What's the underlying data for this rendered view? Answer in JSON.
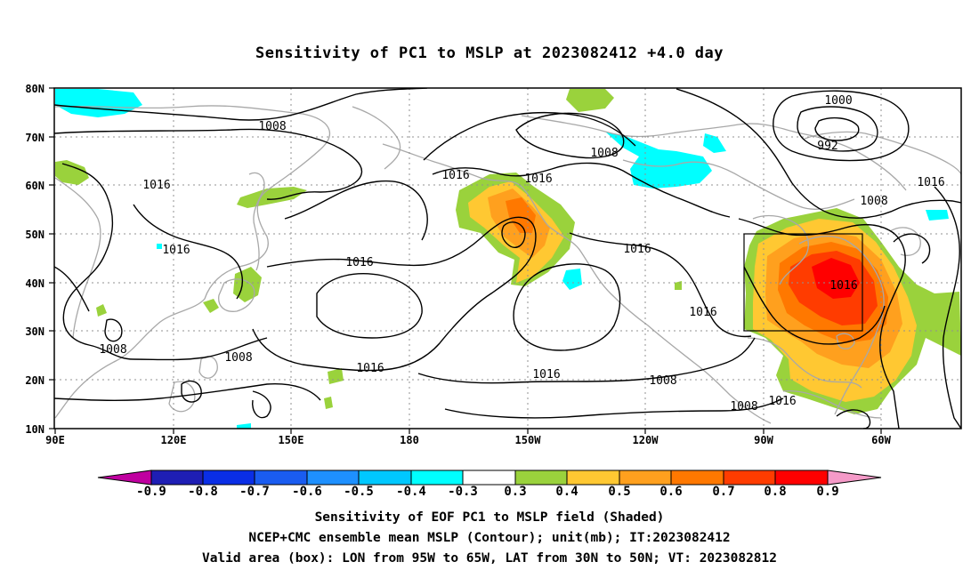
{
  "title": "Sensitivity of PC1 to MSLP at 2023082412 +4.0 day",
  "map": {
    "lon_range": [
      "90E",
      "40W"
    ],
    "lat_range": [
      "10N",
      "80N"
    ],
    "lat_labels": [
      "80N",
      "70N",
      "60N",
      "50N",
      "40N",
      "30N",
      "20N",
      "10N"
    ],
    "lon_labels": [
      "90E",
      "120E",
      "150E",
      "180",
      "150W",
      "120W",
      "90W",
      "60W"
    ],
    "contour_labels": [
      "1008",
      "1016",
      "1016",
      "1016",
      "1008",
      "1008",
      "1016",
      "1016",
      "1016",
      "1016",
      "1008",
      "1016",
      "1000",
      "992",
      "1008",
      "1016",
      "1016",
      "1016",
      "1008",
      "1008",
      "1016"
    ],
    "valid_box": {
      "lon": [
        "95W",
        "65W"
      ],
      "lat": [
        "30N",
        "50N"
      ]
    },
    "colors": {
      "coast": "#a8a8a8",
      "contour": "#000000",
      "grid": "#909090"
    }
  },
  "colorbar": {
    "labels": [
      "-0.9",
      "-0.8",
      "-0.7",
      "-0.6",
      "-0.5",
      "-0.4",
      "-0.3",
      "0.3",
      "0.4",
      "0.5",
      "0.6",
      "0.7",
      "0.8",
      "0.9"
    ],
    "colors": [
      "#c000a0",
      "#1e1eb4",
      "#0a2ee6",
      "#1a5cf0",
      "#1e90ff",
      "#00c8ff",
      "#00ffff",
      "#ffffff",
      "#9ad23c",
      "#ffc832",
      "#ffa01e",
      "#ff7800",
      "#ff3c00",
      "#ff0000",
      "#f59ac8"
    ]
  },
  "captions": {
    "line1": "Sensitivity of EOF PC1 to MSLP field (Shaded)",
    "line2": "NCEP+CMC ensemble mean MSLP (Contour); unit(mb); IT:2023082412",
    "line3": "Valid area (box): LON from 95W to 65W, LAT from 30N to 50N; VT: 2023082812"
  }
}
